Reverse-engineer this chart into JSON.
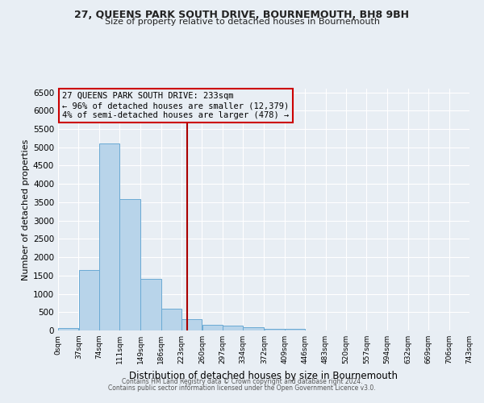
{
  "title": "27, QUEENS PARK SOUTH DRIVE, BOURNEMOUTH, BH8 9BH",
  "subtitle": "Size of property relative to detached houses in Bournemouth",
  "xlabel": "Distribution of detached houses by size in Bournemouth",
  "ylabel": "Number of detached properties",
  "bar_edges": [
    0,
    37,
    74,
    111,
    149,
    186,
    223,
    260,
    297,
    334,
    372,
    409,
    446,
    483,
    520,
    557,
    594,
    632,
    669,
    706,
    743
  ],
  "bar_heights": [
    75,
    1650,
    5100,
    3580,
    1400,
    590,
    310,
    155,
    130,
    90,
    50,
    55,
    0,
    0,
    0,
    0,
    0,
    0,
    0,
    0
  ],
  "bar_color": "#b8d4ea",
  "bar_edge_color": "#6aaad4",
  "vline_x": 233,
  "vline_color": "#aa0000",
  "ylim": [
    0,
    6600
  ],
  "yticks": [
    0,
    500,
    1000,
    1500,
    2000,
    2500,
    3000,
    3500,
    4000,
    4500,
    5000,
    5500,
    6000,
    6500
  ],
  "annotation_title": "27 QUEENS PARK SOUTH DRIVE: 233sqm",
  "annotation_line1": "← 96% of detached houses are smaller (12,379)",
  "annotation_line2": "4% of semi-detached houses are larger (478) →",
  "annotation_box_color": "#cc0000",
  "background_color": "#e8eef4",
  "grid_color": "#ffffff",
  "footer1": "Contains HM Land Registry data © Crown copyright and database right 2024.",
  "footer2": "Contains public sector information licensed under the Open Government Licence v3.0.",
  "tick_labels": [
    "0sqm",
    "37sqm",
    "74sqm",
    "111sqm",
    "149sqm",
    "186sqm",
    "223sqm",
    "260sqm",
    "297sqm",
    "334sqm",
    "372sqm",
    "409sqm",
    "446sqm",
    "483sqm",
    "520sqm",
    "557sqm",
    "594sqm",
    "632sqm",
    "669sqm",
    "706sqm",
    "743sqm"
  ]
}
